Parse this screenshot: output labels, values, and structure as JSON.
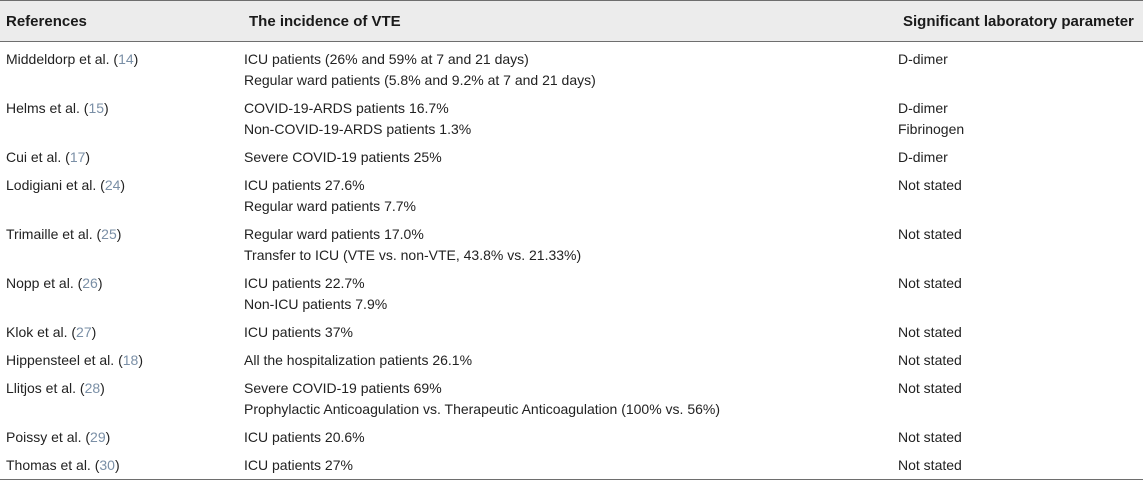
{
  "table": {
    "headers": {
      "references": "References",
      "incidence": "The incidence of VTE",
      "parameter": "Significant laboratory parameter"
    },
    "rows": [
      {
        "author": "Middeldorp et al. (",
        "ref": "14",
        "close": ")",
        "incidence": [
          "ICU patients (26% and 59% at 7 and 21 days)",
          "Regular ward patients (5.8% and 9.2% at 7 and 21 days)"
        ],
        "parameter": [
          "D-dimer"
        ]
      },
      {
        "author": "Helms et al. (",
        "ref": "15",
        "close": ")",
        "incidence": [
          "COVID-19-ARDS patients 16.7%",
          "Non-COVID-19-ARDS patients 1.3%"
        ],
        "parameter": [
          "D-dimer",
          "Fibrinogen"
        ]
      },
      {
        "author": "Cui et al. (",
        "ref": "17",
        "close": ")",
        "incidence": [
          "Severe COVID-19 patients 25%"
        ],
        "parameter": [
          "D-dimer"
        ]
      },
      {
        "author": "Lodigiani et al. (",
        "ref": "24",
        "close": ")",
        "incidence": [
          "ICU patients 27.6%",
          "Regular ward patients 7.7%"
        ],
        "parameter": [
          "Not stated"
        ]
      },
      {
        "author": "Trimaille et al. (",
        "ref": "25",
        "close": ")",
        "incidence": [
          "Regular ward patients 17.0%",
          "Transfer to ICU (VTE vs. non-VTE, 43.8% vs. 21.33%)"
        ],
        "parameter": [
          "Not stated"
        ]
      },
      {
        "author": "Nopp et al. (",
        "ref": "26",
        "close": ")",
        "incidence": [
          "ICU patients 22.7%",
          "Non-ICU patients 7.9%"
        ],
        "parameter": [
          "Not stated"
        ]
      },
      {
        "author": "Klok et al. (",
        "ref": "27",
        "close": ")",
        "incidence": [
          "ICU patients 37%"
        ],
        "parameter": [
          "Not stated"
        ]
      },
      {
        "author": "Hippensteel et al. (",
        "ref": "18",
        "close": ")",
        "incidence": [
          "All the hospitalization patients 26.1%"
        ],
        "parameter": [
          "Not stated"
        ]
      },
      {
        "author": "Llitjos et al. (",
        "ref": "28",
        "close": ")",
        "incidence": [
          "Severe COVID-19 patients 69%",
          "Prophylactic Anticoagulation vs. Therapeutic Anticoagulation (100% vs. 56%)"
        ],
        "parameter": [
          "Not stated"
        ]
      },
      {
        "author": "Poissy et al. (",
        "ref": "29",
        "close": ")",
        "incidence": [
          "ICU patients 20.6%"
        ],
        "parameter": [
          "Not stated"
        ]
      },
      {
        "author": "Thomas et al. (",
        "ref": "30",
        "close": ")",
        "incidence": [
          "ICU patients 27%"
        ],
        "parameter": [
          "Not stated"
        ]
      }
    ]
  },
  "colors": {
    "header_bg": "#ececec",
    "ref_link": "#7a8fa6",
    "rule": "#6e6e6e"
  }
}
